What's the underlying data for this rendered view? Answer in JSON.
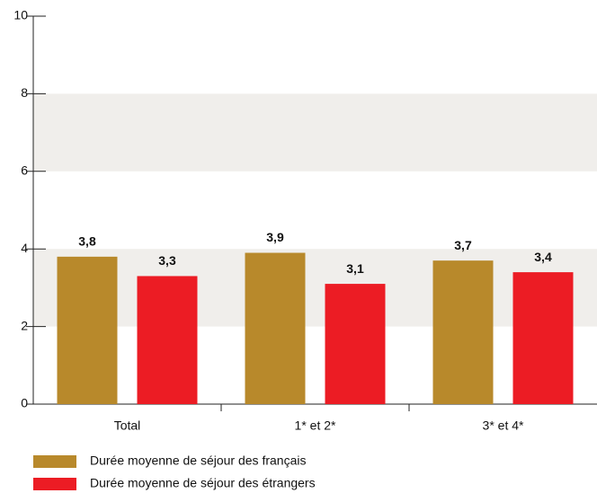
{
  "chart_data": {
    "type": "bar",
    "categories": [
      "Total",
      "1* et 2*",
      "3* et 4*"
    ],
    "series": [
      {
        "name": "Durée moyenne de séjour des français",
        "color": "#b8892b",
        "values": [
          3.8,
          3.9,
          3.7
        ],
        "value_labels": [
          "3,8",
          "3,9",
          "3,7"
        ]
      },
      {
        "name": "Durée moyenne de séjour des étrangers",
        "color": "#ec1c24",
        "values": [
          3.3,
          3.1,
          3.4
        ],
        "value_labels": [
          "3,3",
          "3,1",
          "3,4"
        ]
      }
    ],
    "ylim": [
      0,
      10
    ],
    "yticks": [
      0,
      2,
      4,
      6,
      8,
      10
    ],
    "bands": true,
    "band_color": "#f0eeeb"
  }
}
